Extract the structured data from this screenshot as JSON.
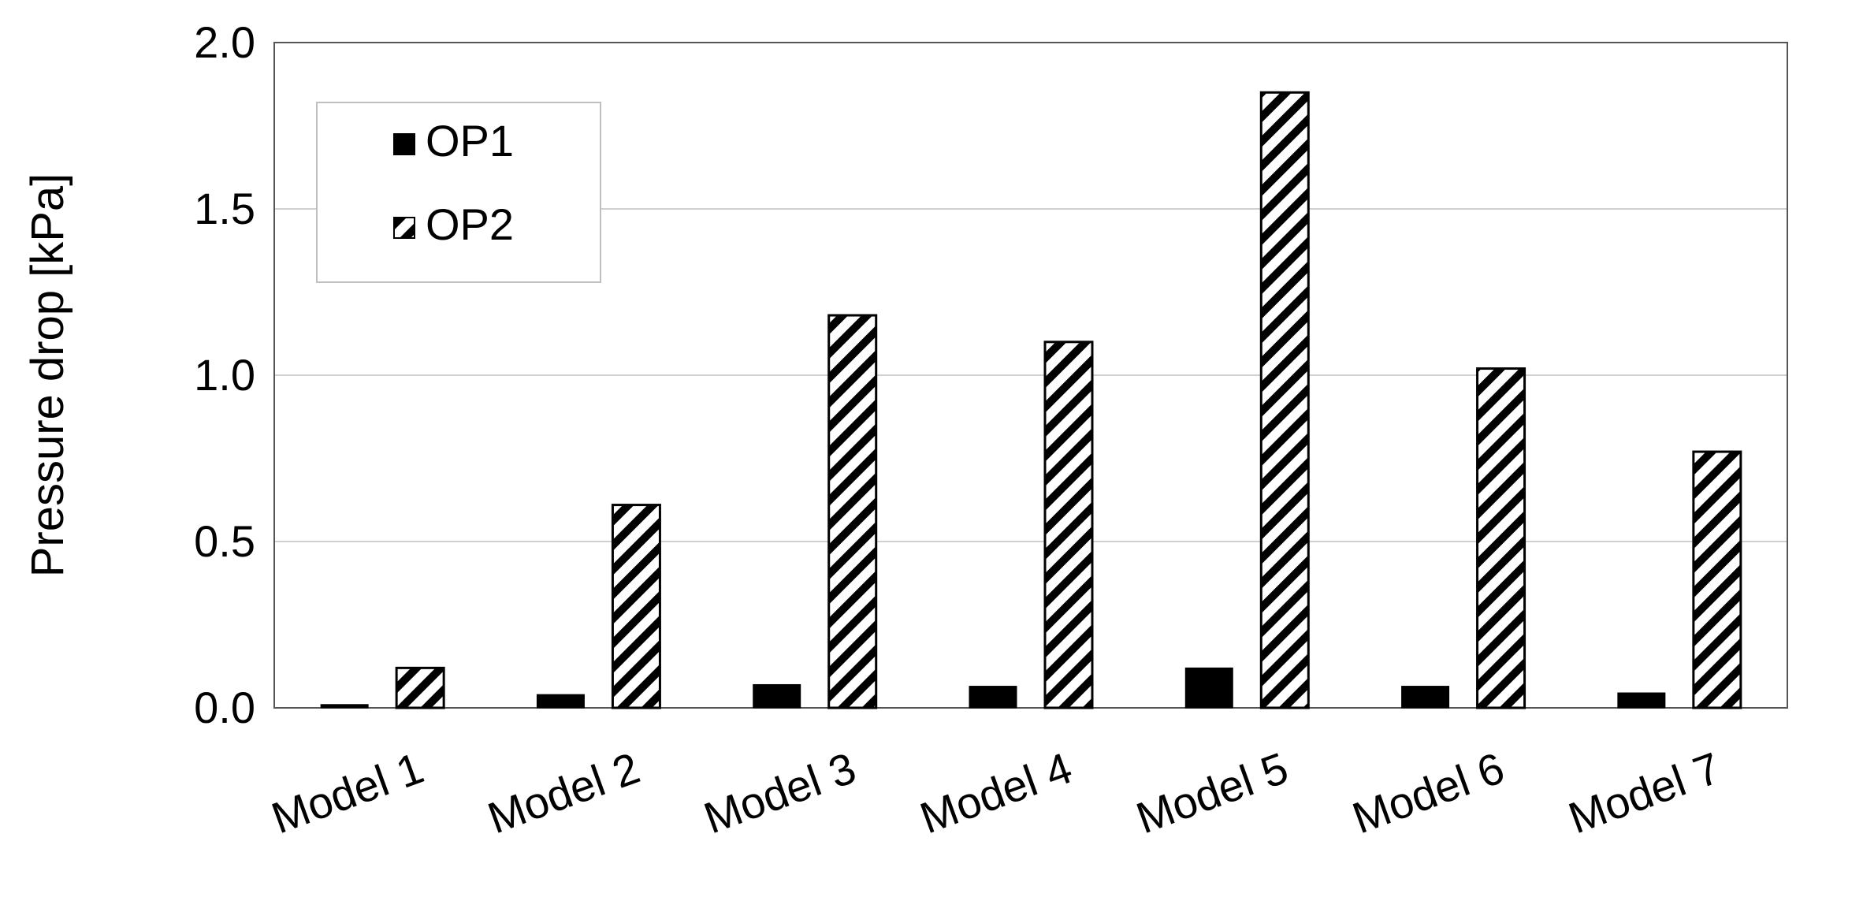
{
  "chart_data": {
    "type": "bar",
    "title": "",
    "xlabel": "",
    "ylabel": "Pressure drop [kPa]",
    "categories": [
      "Model 1",
      "Model 2",
      "Model 3",
      "Model 4",
      "Model 5",
      "Model 6",
      "Model 7"
    ],
    "series": [
      {
        "name": "OP1",
        "fill": "solid",
        "color": "#000000",
        "values": [
          0.01,
          0.04,
          0.07,
          0.065,
          0.12,
          0.065,
          0.045
        ]
      },
      {
        "name": "OP2",
        "fill": "diagonal-hatch",
        "color": "#000000",
        "values": [
          0.12,
          0.61,
          1.18,
          1.1,
          1.85,
          1.02,
          0.77
        ]
      }
    ],
    "ylim": [
      0,
      2.0
    ],
    "yticks": [
      "0.0",
      "0.5",
      "1.0",
      "1.5",
      "2.0"
    ],
    "grid": "horizontal",
    "legend": "top-left"
  }
}
